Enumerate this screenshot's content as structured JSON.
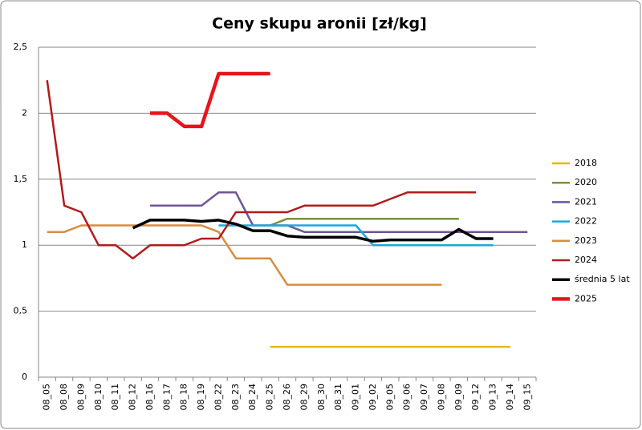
{
  "chart_data": {
    "type": "line",
    "title": "Ceny skupu aronii [zł/kg]",
    "categories": [
      "08_05",
      "08_08",
      "08_09",
      "08_10",
      "08_11",
      "08_12",
      "08_16",
      "08_17",
      "08_18",
      "08_19",
      "08_22",
      "08_23",
      "08_24",
      "08_25",
      "08_26",
      "08_29",
      "08_30",
      "08_31",
      "09_01",
      "09_02",
      "09_05",
      "09_06",
      "09_07",
      "09_08",
      "09_09",
      "09_12",
      "09_13",
      "09_14",
      "09_15"
    ],
    "series": [
      {
        "name": "2018",
        "color": "#e8b800",
        "width": 2.5,
        "values": [
          null,
          null,
          null,
          null,
          null,
          null,
          null,
          null,
          null,
          null,
          null,
          null,
          null,
          0.23,
          0.23,
          0.23,
          0.23,
          0.23,
          0.23,
          0.23,
          0.23,
          0.23,
          0.23,
          0.23,
          0.23,
          0.23,
          0.23,
          0.23,
          null
        ]
      },
      {
        "name": "2020",
        "color": "#77933c",
        "width": 2.5,
        "values": [
          null,
          null,
          null,
          null,
          null,
          null,
          null,
          null,
          null,
          null,
          null,
          null,
          null,
          1.15,
          1.2,
          1.2,
          1.2,
          1.2,
          1.2,
          1.2,
          1.2,
          1.2,
          1.2,
          1.2,
          1.2,
          null,
          null,
          null,
          null
        ]
      },
      {
        "name": "2021",
        "color": "#6f5597",
        "width": 2.5,
        "values": [
          null,
          null,
          null,
          null,
          null,
          null,
          1.3,
          1.3,
          1.3,
          1.3,
          1.4,
          1.4,
          1.15,
          1.15,
          1.15,
          1.1,
          1.1,
          1.1,
          1.1,
          1.1,
          1.1,
          1.1,
          1.1,
          1.1,
          1.1,
          1.1,
          1.1,
          1.1,
          1.1
        ]
      },
      {
        "name": "2022",
        "color": "#1ba9d8",
        "width": 2.5,
        "values": [
          null,
          null,
          null,
          null,
          null,
          null,
          null,
          null,
          null,
          null,
          1.15,
          1.15,
          1.15,
          1.15,
          1.15,
          1.15,
          1.15,
          1.15,
          1.15,
          1.0,
          1.0,
          1.0,
          1.0,
          1.0,
          1.0,
          1.0,
          1.0,
          null,
          null
        ]
      },
      {
        "name": "2023",
        "color": "#d98c3f",
        "width": 2.5,
        "values": [
          1.1,
          1.1,
          1.15,
          1.15,
          1.15,
          1.15,
          1.15,
          1.15,
          1.15,
          1.15,
          1.1,
          0.9,
          0.9,
          0.9,
          0.7,
          0.7,
          0.7,
          0.7,
          0.7,
          0.7,
          0.7,
          0.7,
          0.7,
          0.7,
          null,
          null,
          null,
          null,
          null
        ]
      },
      {
        "name": "2024",
        "color": "#b21b1b",
        "width": 2.5,
        "values": [
          2.25,
          1.3,
          1.25,
          1.0,
          1.0,
          0.9,
          1.0,
          1.0,
          1.0,
          1.05,
          1.05,
          1.25,
          1.25,
          1.25,
          1.25,
          1.3,
          1.3,
          1.3,
          1.3,
          1.3,
          1.35,
          1.4,
          1.4,
          1.4,
          1.4,
          1.4,
          null,
          null,
          null
        ]
      },
      {
        "name": "średnia 5 lat",
        "color": "#000000",
        "width": 3.5,
        "values": [
          null,
          null,
          null,
          null,
          null,
          1.13,
          1.19,
          1.19,
          1.19,
          1.18,
          1.19,
          1.16,
          1.11,
          1.11,
          1.07,
          1.06,
          1.06,
          1.06,
          1.06,
          1.03,
          1.04,
          1.04,
          1.04,
          1.04,
          1.12,
          1.05,
          1.05,
          null,
          null
        ]
      },
      {
        "name": "2025",
        "color": "#e8141b",
        "width": 4.5,
        "values": [
          null,
          null,
          null,
          null,
          null,
          null,
          2.0,
          2.0,
          1.9,
          1.9,
          2.3,
          2.3,
          2.3,
          2.3,
          null,
          null,
          null,
          null,
          null,
          null,
          null,
          null,
          null,
          null,
          null,
          null,
          null,
          null,
          null
        ]
      }
    ],
    "ylim": [
      0,
      2.5
    ],
    "yticks": [
      0,
      {
        "value": 0.5,
        "label": "0,5"
      },
      1,
      {
        "value": 1.5,
        "label": "1,5"
      },
      2,
      {
        "value": 2.5,
        "label": "2,5"
      }
    ],
    "grid": true,
    "legend": "right"
  }
}
